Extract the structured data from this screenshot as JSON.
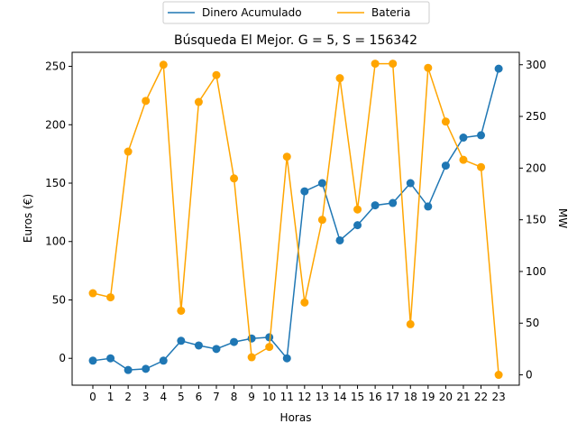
{
  "chart_data": {
    "type": "line",
    "title": "Búsqueda El Mejor. G = 5, S = 156342",
    "xlabel": "Horas",
    "ylabel": "Euros (€)",
    "y2label": "MW",
    "x": [
      0,
      1,
      2,
      3,
      4,
      5,
      6,
      7,
      8,
      9,
      10,
      11,
      12,
      13,
      14,
      15,
      16,
      17,
      18,
      19,
      20,
      21,
      22,
      23
    ],
    "xticks": [
      "0",
      "1",
      "2",
      "3",
      "4",
      "5",
      "6",
      "7",
      "8",
      "9",
      "10",
      "11",
      "12",
      "13",
      "14",
      "15",
      "16",
      "17",
      "18",
      "19",
      "20",
      "21",
      "22",
      "23"
    ],
    "ylim": [
      -23,
      262
    ],
    "yticks": [
      "0",
      "50",
      "100",
      "150",
      "200",
      "250"
    ],
    "y2lim": [
      -10,
      312
    ],
    "y2ticks": [
      "0",
      "50",
      "100",
      "150",
      "200",
      "250",
      "300"
    ],
    "legend": "top-center",
    "grid": false,
    "series": [
      {
        "name": "Dinero Acumulado",
        "axis": "left",
        "color": "#1f77b4",
        "values": [
          -2,
          0,
          -10,
          -9,
          -2,
          15,
          11,
          8,
          14,
          17,
          18,
          0,
          143,
          150,
          101,
          114,
          131,
          133,
          150,
          130,
          165,
          189,
          191,
          248
        ]
      },
      {
        "name": "Bateria",
        "axis": "right",
        "color": "#ffa500",
        "values": [
          79,
          75,
          216,
          265,
          300,
          62,
          264,
          290,
          190,
          17,
          27,
          211,
          70,
          150,
          287,
          160,
          301,
          301,
          49,
          297,
          245,
          208,
          201,
          0
        ]
      }
    ]
  }
}
